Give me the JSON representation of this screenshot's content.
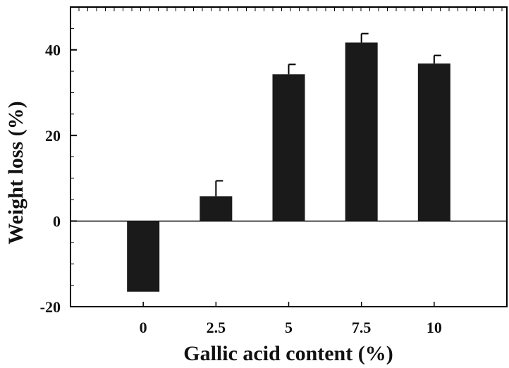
{
  "chart_data": {
    "type": "bar",
    "title": "",
    "xlabel": "Gallic acid content (%)",
    "ylabel": "Weight loss (%)",
    "categories": [
      "0",
      "2.5",
      "5",
      "7.5",
      "10"
    ],
    "values": [
      -16.5,
      5.8,
      34.3,
      41.7,
      36.8
    ],
    "errors": [
      0,
      3.6,
      2.3,
      2.1,
      1.9
    ],
    "ylim": [
      -20,
      50
    ],
    "yticks": [
      "-20",
      "0",
      "20",
      "40"
    ],
    "grid": false,
    "legend": "none",
    "bar_color": "#1a1a1a",
    "axis_color": "#000000"
  }
}
